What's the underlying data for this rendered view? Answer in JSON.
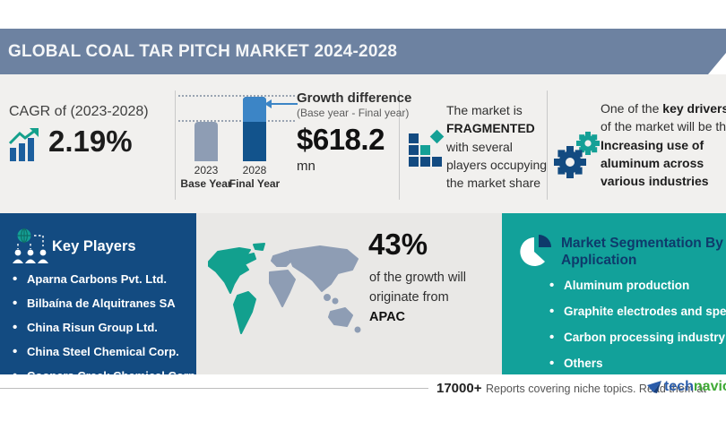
{
  "header": {
    "title": "GLOBAL COAL TAR PITCH MARKET 2024-2028"
  },
  "colors": {
    "header_slate": "#6d82a1",
    "navy_panel": "#134b81",
    "teal_panel": "#12a19a",
    "bar_base": "#8e9db4",
    "bar_final_dark": "#12538c",
    "bar_growth_light": "#3c85c6",
    "map_highlight_teal": "#12a08e",
    "map_gray": "#8e9db4",
    "brand_blue": "#2a5caa",
    "brand_green": "#3faa35"
  },
  "cagr": {
    "label": "CAGR of (2023-2028)",
    "value": "2.19%"
  },
  "chart_data": {
    "type": "bar",
    "title": "Growth difference",
    "subtitle": "(Base year - Final year)",
    "categories": [
      "2023 Base Year",
      "2028 Final Year"
    ],
    "series": [
      {
        "name": "Market size (relative bar height, px)",
        "values": [
          44,
          72
        ]
      }
    ],
    "growth_difference_value": "$618.2",
    "growth_difference_unit": "mn",
    "cagr_2023_2028": "2.19%",
    "legend_position": "none",
    "grid": "dotted guide lines at each bar top",
    "notes": "Absolute market size not shown; only growth difference $618.2 mn labeled. Final-year bar upper (light) segment = growth over base year."
  },
  "growth": {
    "title": "Growth difference",
    "subtitle": "(Base year - Final year)",
    "value": "$618.2",
    "unit": "mn",
    "bars": [
      {
        "year": "2023",
        "label": "Base Year"
      },
      {
        "year": "2028",
        "label": "Final Year"
      }
    ]
  },
  "fragmented": {
    "pre": "The market is ",
    "emph": "FRAGMENTED",
    "post": " with several players occupying the market share"
  },
  "driver": {
    "pre": "One of the ",
    "bold1": "key drivers",
    "mid": " of the market will be the ",
    "bold2": "Increasing use of aluminum across various industries"
  },
  "key_players": {
    "title": "Key Players",
    "items": [
      "Aparna Carbons Pvt. Ltd.",
      "Bilbaína de Alquitranes SA",
      "China Risun Group Ltd.",
      "China Steel Chemical Corp.",
      "Coopers Creek Chemical Corp."
    ]
  },
  "region": {
    "percent": "43%",
    "line1": "of the growth will",
    "line2": "originate from",
    "name": "APAC"
  },
  "segmentation": {
    "title_line1": "Market Segmentation By",
    "title_line2": "Application",
    "items": [
      "Aluminum production",
      "Graphite electrodes and specialty",
      "Carbon processing industry",
      "Others"
    ]
  },
  "footer": {
    "count": "17000+",
    "text": "Reports covering niche topics. Read them at",
    "brand_tech": "tech",
    "brand_navio": "navio"
  }
}
